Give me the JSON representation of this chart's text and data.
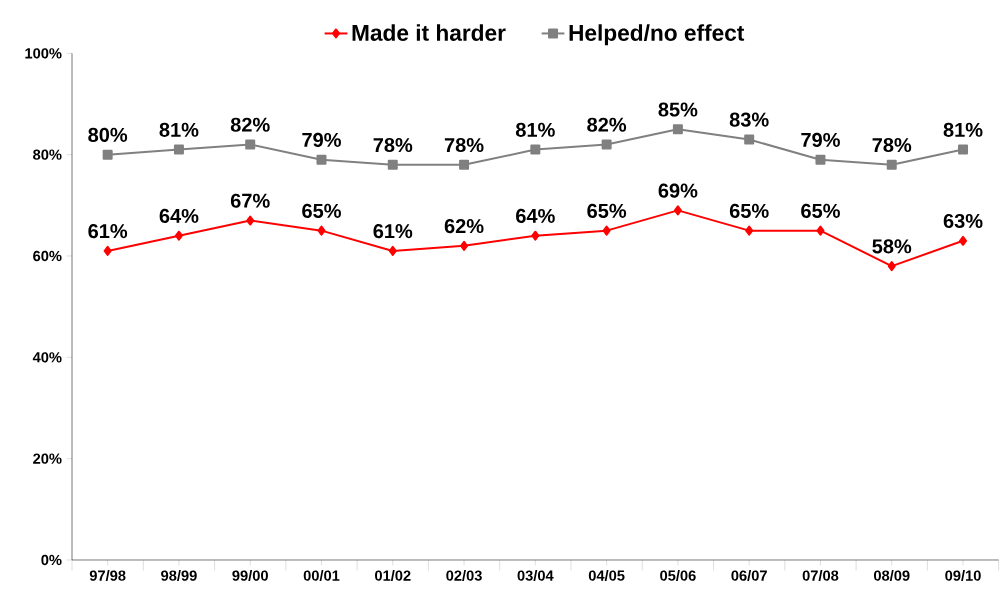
{
  "chart_data": {
    "type": "line",
    "categories": [
      "97/98",
      "98/99",
      "99/00",
      "00/01",
      "01/02",
      "02/03",
      "03/04",
      "04/05",
      "05/06",
      "06/07",
      "07/08",
      "08/09",
      "09/10"
    ],
    "series": [
      {
        "name": "Made it harder",
        "color": "#ff0000",
        "marker": "diamond",
        "values": [
          61,
          64,
          67,
          65,
          61,
          62,
          64,
          65,
          69,
          65,
          65,
          58,
          63
        ],
        "value_labels": [
          "61%",
          "64%",
          "67%",
          "65%",
          "61%",
          "62%",
          "64%",
          "65%",
          "69%",
          "65%",
          "65%",
          "58%",
          "63%"
        ]
      },
      {
        "name": "Helped/no effect",
        "color": "#808080",
        "marker": "square",
        "values": [
          80,
          81,
          82,
          79,
          78,
          78,
          81,
          82,
          85,
          83,
          79,
          78,
          81
        ],
        "value_labels": [
          "80%",
          "81%",
          "82%",
          "79%",
          "78%",
          "78%",
          "81%",
          "82%",
          "85%",
          "83%",
          "79%",
          "78%",
          "81%"
        ]
      }
    ],
    "ylim": [
      0,
      100
    ],
    "yticks": [
      {
        "value": 0,
        "label": "0%"
      },
      {
        "value": 20,
        "label": "20%"
      },
      {
        "value": 40,
        "label": "40%"
      },
      {
        "value": 60,
        "label": "60%"
      },
      {
        "value": 80,
        "label": "80%"
      },
      {
        "value": 100,
        "label": "100%"
      }
    ],
    "grid": false,
    "legend": "top",
    "line_style": "solid"
  }
}
